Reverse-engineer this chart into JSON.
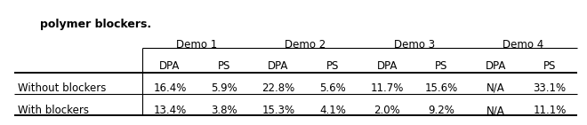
{
  "title_line": "polymer blockers.",
  "col_groups": [
    "Demo 1",
    "Demo 2",
    "Demo 3",
    "Demo 4"
  ],
  "sub_cols": [
    "DPA",
    "PS"
  ],
  "row_labels": [
    "Without blockers",
    "With blockers"
  ],
  "data": [
    [
      "16.4%",
      "5.9%",
      "22.8%",
      "5.6%",
      "11.7%",
      "15.6%",
      "N/A",
      "33.1%"
    ],
    [
      "13.4%",
      "3.8%",
      "15.3%",
      "4.1%",
      "2.0%",
      "9.2%",
      "N/A",
      "11.1%"
    ]
  ],
  "bg_color": "#ffffff",
  "text_color": "#000000",
  "title_fontsize": 9,
  "header_fontsize": 8.5,
  "cell_fontsize": 8.5
}
